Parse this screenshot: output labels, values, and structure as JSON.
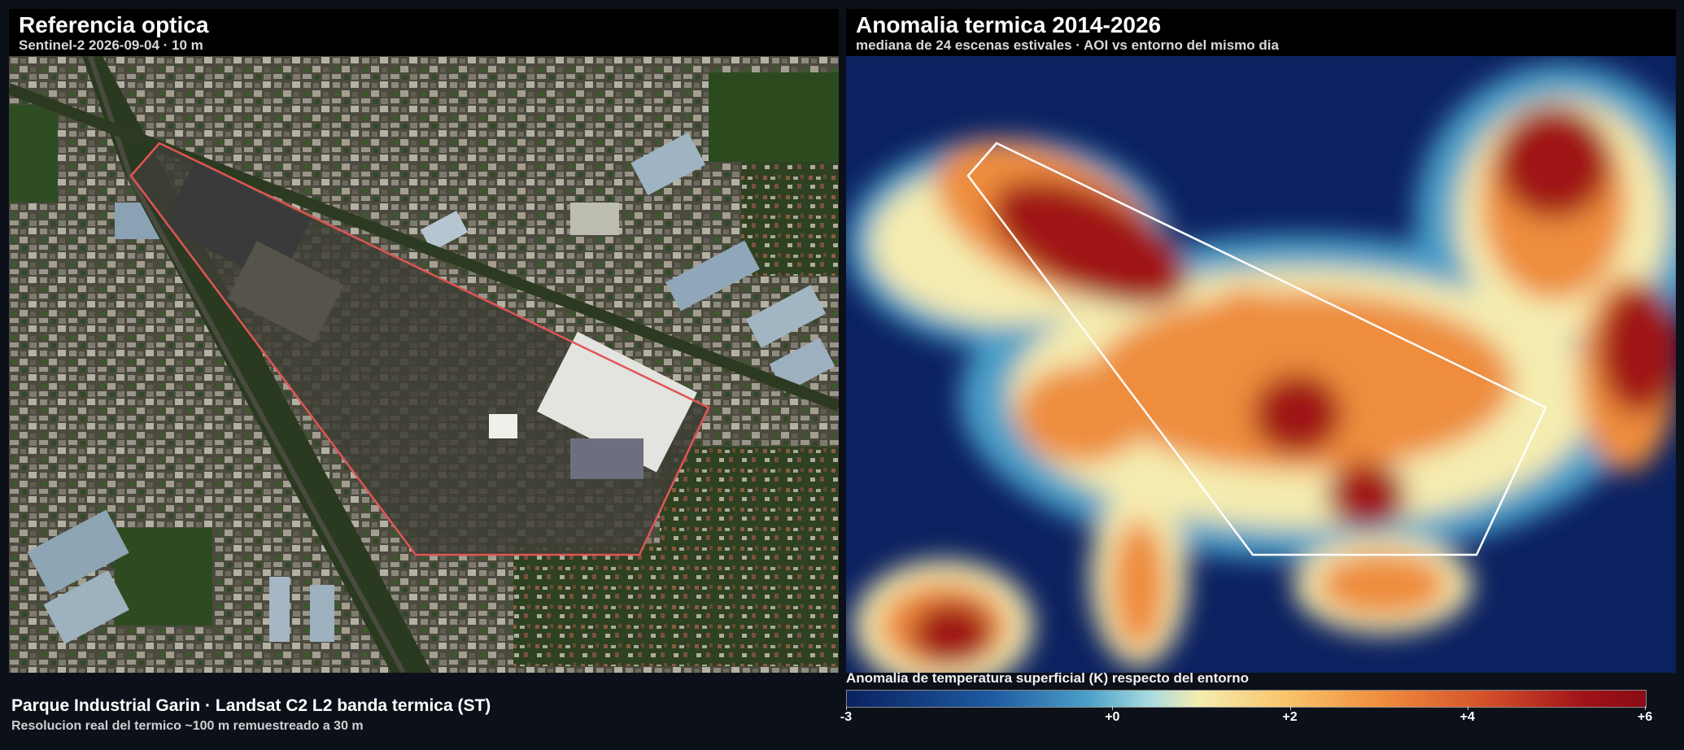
{
  "optical": {
    "title": "Referencia optica",
    "subtitle": "Sentinel-2 2026-09-04 · 10 m"
  },
  "thermal": {
    "title": "Anomalia termica 2014-2026",
    "subtitle": "mediana de 24 escenas estivales · AOI vs entorno del mismo dia"
  },
  "footer": {
    "title": "Parque Industrial Garin · Landsat C2 L2 banda termica (ST)",
    "note": "Resolucion real del termico ~100 m remuestreado a 30 m"
  },
  "colorbar": {
    "label": "Anomalia de temperatura superficial (K) respecto del entorno",
    "ticks": [
      "-3",
      "+0",
      "+2",
      "+4",
      "+6"
    ],
    "range": [
      -3,
      6
    ],
    "colors": [
      "#0b2160",
      "#4a9ec8",
      "#f5ecb0",
      "#ee8d3e",
      "#8a0a14"
    ]
  },
  "colors": {
    "aoi_outline_optical": "#e05555",
    "aoi_outline_thermal": "#ffffff"
  }
}
